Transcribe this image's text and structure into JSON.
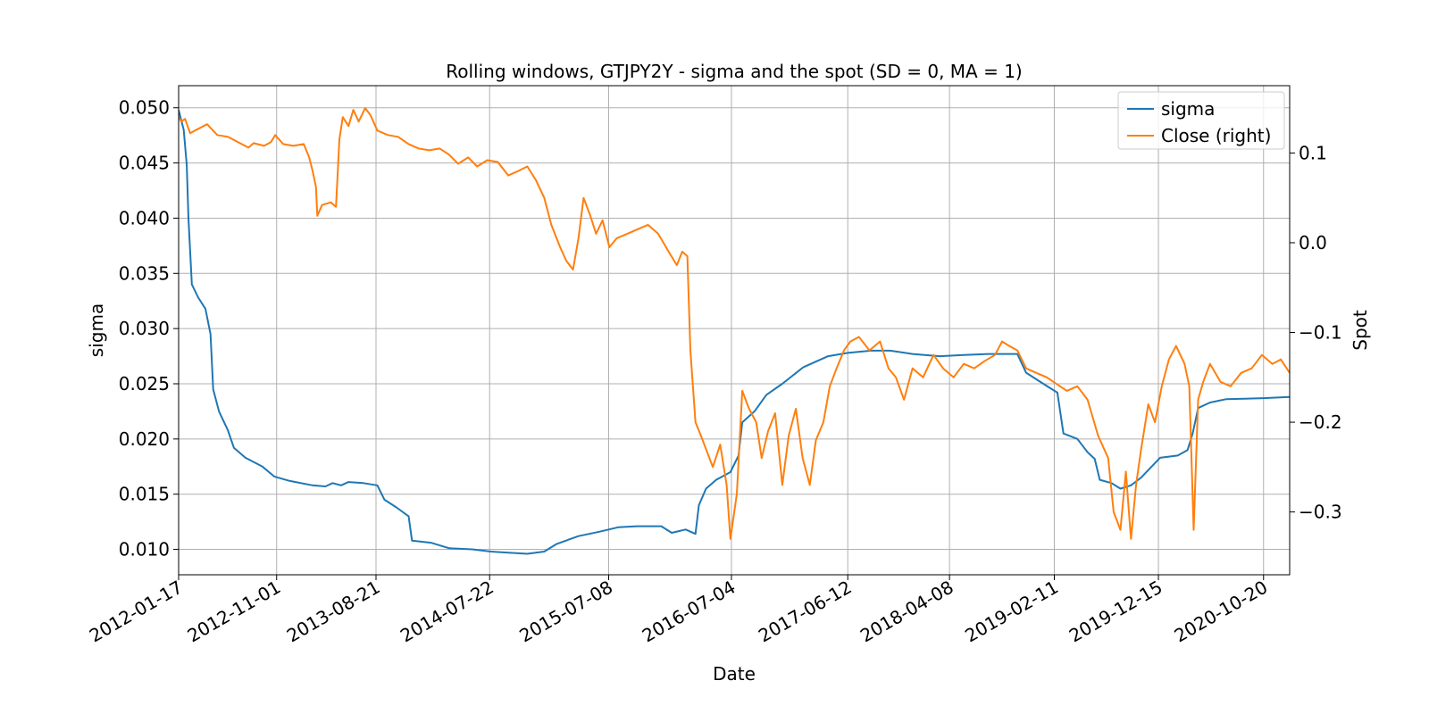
{
  "chart_data": {
    "type": "line",
    "title": "Rolling windows, GTJPY2Y - sigma and the spot (SD = 0, MA = 1)",
    "xlabel": "Date",
    "ylabel_left": "sigma",
    "ylabel_right": "Spot",
    "x_ticks": [
      "2012-01-17",
      "2012-11-01",
      "2013-08-21",
      "2014-07-22",
      "2015-07-08",
      "2016-07-04",
      "2017-06-12",
      "2018-04-08",
      "2019-02-11",
      "2019-12-15",
      "2020-10-20"
    ],
    "xlim": [
      "2012-01-17",
      "2021-01-05"
    ],
    "y_left_ticks": [
      "0.010",
      "0.015",
      "0.020",
      "0.025",
      "0.030",
      "0.035",
      "0.040",
      "0.045",
      "0.050"
    ],
    "y_left_lim": [
      0.0077,
      0.052
    ],
    "y_right_ticks": [
      "−0.3",
      "−0.2",
      "−0.1",
      "0.0",
      "0.1"
    ],
    "y_right_lim": [
      -0.37,
      0.175
    ],
    "grid": true,
    "legend_position": "top-right",
    "legend": [
      "sigma",
      "Close (right)"
    ],
    "series": [
      {
        "name": "sigma",
        "axis": "left",
        "color": "#1f77b4",
        "points": [
          [
            "2012-01-17",
            0.0498
          ],
          [
            "2012-02-01",
            0.048
          ],
          [
            "2012-02-10",
            0.0448
          ],
          [
            "2012-02-15",
            0.04
          ],
          [
            "2012-02-25",
            0.034
          ],
          [
            "2012-03-15",
            0.0328
          ],
          [
            "2012-04-05",
            0.0318
          ],
          [
            "2012-04-20",
            0.0295
          ],
          [
            "2012-04-28",
            0.0245
          ],
          [
            "2012-05-15",
            0.0225
          ],
          [
            "2012-06-10",
            0.0208
          ],
          [
            "2012-06-28",
            0.0192
          ],
          [
            "2012-08-01",
            0.0183
          ],
          [
            "2012-09-20",
            0.0175
          ],
          [
            "2012-10-25",
            0.0166
          ],
          [
            "2012-12-10",
            0.0162
          ],
          [
            "2013-02-15",
            0.0158
          ],
          [
            "2013-03-25",
            0.0157
          ],
          [
            "2013-04-15",
            0.016
          ],
          [
            "2013-05-10",
            0.0158
          ],
          [
            "2013-06-01",
            0.0161
          ],
          [
            "2013-07-15",
            0.016
          ],
          [
            "2013-08-25",
            0.0158
          ],
          [
            "2013-09-15",
            0.0145
          ],
          [
            "2013-10-20",
            0.0138
          ],
          [
            "2013-11-25",
            0.013
          ],
          [
            "2013-12-05",
            0.0108
          ],
          [
            "2014-01-30",
            0.0106
          ],
          [
            "2014-03-25",
            0.0101
          ],
          [
            "2014-06-01",
            0.01
          ],
          [
            "2014-07-25",
            0.0098
          ],
          [
            "2014-09-15",
            0.0097
          ],
          [
            "2014-11-10",
            0.0096
          ],
          [
            "2014-12-30",
            0.0098
          ],
          [
            "2015-02-05",
            0.0105
          ],
          [
            "2015-04-10",
            0.0112
          ],
          [
            "2015-06-10",
            0.0116
          ],
          [
            "2015-08-05",
            0.012
          ],
          [
            "2015-09-30",
            0.0121
          ],
          [
            "2015-12-10",
            0.0121
          ],
          [
            "2016-01-10",
            0.0115
          ],
          [
            "2016-02-20",
            0.0118
          ],
          [
            "2016-03-20",
            0.0114
          ],
          [
            "2016-03-30",
            0.014
          ],
          [
            "2016-04-20",
            0.0155
          ],
          [
            "2016-05-20",
            0.0163
          ],
          [
            "2016-07-01",
            0.017
          ],
          [
            "2016-07-25",
            0.0185
          ],
          [
            "2016-08-05",
            0.0215
          ],
          [
            "2016-09-10",
            0.0225
          ],
          [
            "2016-10-15",
            0.024
          ],
          [
            "2016-12-01",
            0.025
          ],
          [
            "2017-02-01",
            0.0265
          ],
          [
            "2017-04-15",
            0.0275
          ],
          [
            "2017-06-12",
            0.0278
          ],
          [
            "2017-08-20",
            0.028
          ],
          [
            "2017-10-15",
            0.028
          ],
          [
            "2017-12-20",
            0.0277
          ],
          [
            "2018-03-10",
            0.0275
          ],
          [
            "2018-05-20",
            0.0276
          ],
          [
            "2018-08-01",
            0.0277
          ],
          [
            "2018-10-25",
            0.0277
          ],
          [
            "2018-11-20",
            0.026
          ],
          [
            "2019-01-20",
            0.0248
          ],
          [
            "2019-02-20",
            0.0242
          ],
          [
            "2019-03-10",
            0.0205
          ],
          [
            "2019-04-20",
            0.02
          ],
          [
            "2019-05-20",
            0.0188
          ],
          [
            "2019-06-10",
            0.0182
          ],
          [
            "2019-06-25",
            0.0163
          ],
          [
            "2019-07-30",
            0.016
          ],
          [
            "2019-08-25",
            0.0155
          ],
          [
            "2019-09-25",
            0.0158
          ],
          [
            "2019-10-25",
            0.0165
          ],
          [
            "2019-11-25",
            0.0175
          ],
          [
            "2019-12-20",
            0.0183
          ],
          [
            "2020-02-10",
            0.0185
          ],
          [
            "2020-03-10",
            0.019
          ],
          [
            "2020-03-25",
            0.0205
          ],
          [
            "2020-04-10",
            0.0228
          ],
          [
            "2020-05-15",
            0.0233
          ],
          [
            "2020-07-01",
            0.0236
          ],
          [
            "2020-10-20",
            0.0237
          ],
          [
            "2021-01-05",
            0.0238
          ]
        ]
      },
      {
        "name": "Close (right)",
        "axis": "right",
        "color": "#ff7f0e",
        "points": [
          [
            "2012-01-17",
            0.14
          ],
          [
            "2012-01-25",
            0.135
          ],
          [
            "2012-02-05",
            0.138
          ],
          [
            "2012-02-20",
            0.122
          ],
          [
            "2012-03-10",
            0.126
          ],
          [
            "2012-04-10",
            0.132
          ],
          [
            "2012-05-10",
            0.12
          ],
          [
            "2012-06-10",
            0.118
          ],
          [
            "2012-07-10",
            0.112
          ],
          [
            "2012-08-10",
            0.106
          ],
          [
            "2012-08-25",
            0.111
          ],
          [
            "2012-09-25",
            0.108
          ],
          [
            "2012-10-15",
            0.112
          ],
          [
            "2012-10-28",
            0.12
          ],
          [
            "2012-11-20",
            0.11
          ],
          [
            "2012-12-20",
            0.108
          ],
          [
            "2013-01-20",
            0.11
          ],
          [
            "2013-02-05",
            0.095
          ],
          [
            "2013-02-15",
            0.08
          ],
          [
            "2013-02-25",
            0.062
          ],
          [
            "2013-03-01",
            0.03
          ],
          [
            "2013-03-15",
            0.042
          ],
          [
            "2013-04-10",
            0.045
          ],
          [
            "2013-04-25",
            0.04
          ],
          [
            "2013-05-05",
            0.115
          ],
          [
            "2013-05-15",
            0.14
          ],
          [
            "2013-06-01",
            0.13
          ],
          [
            "2013-06-15",
            0.148
          ],
          [
            "2013-07-01",
            0.135
          ],
          [
            "2013-07-20",
            0.15
          ],
          [
            "2013-08-05",
            0.142
          ],
          [
            "2013-08-25",
            0.125
          ],
          [
            "2013-09-25",
            0.12
          ],
          [
            "2013-10-25",
            0.118
          ],
          [
            "2013-11-25",
            0.11
          ],
          [
            "2013-12-25",
            0.105
          ],
          [
            "2014-01-25",
            0.103
          ],
          [
            "2014-02-25",
            0.105
          ],
          [
            "2014-03-25",
            0.098
          ],
          [
            "2014-04-20",
            0.088
          ],
          [
            "2014-05-20",
            0.095
          ],
          [
            "2014-06-15",
            0.085
          ],
          [
            "2014-07-15",
            0.092
          ],
          [
            "2014-08-15",
            0.09
          ],
          [
            "2014-09-15",
            0.075
          ],
          [
            "2014-10-15",
            0.08
          ],
          [
            "2014-11-10",
            0.085
          ],
          [
            "2014-12-05",
            0.07
          ],
          [
            "2014-12-30",
            0.05
          ],
          [
            "2015-01-20",
            0.02
          ],
          [
            "2015-02-15",
            -0.005
          ],
          [
            "2015-03-05",
            -0.02
          ],
          [
            "2015-03-25",
            -0.03
          ],
          [
            "2015-04-10",
            0.005
          ],
          [
            "2015-04-25",
            0.05
          ],
          [
            "2015-05-15",
            0.03
          ],
          [
            "2015-06-01",
            0.01
          ],
          [
            "2015-06-20",
            0.025
          ],
          [
            "2015-07-10",
            -0.005
          ],
          [
            "2015-08-01",
            0.005
          ],
          [
            "2015-09-01",
            0.01
          ],
          [
            "2015-10-01",
            0.015
          ],
          [
            "2015-11-01",
            0.02
          ],
          [
            "2015-12-01",
            0.01
          ],
          [
            "2016-01-01",
            -0.01
          ],
          [
            "2016-01-25",
            -0.025
          ],
          [
            "2016-02-10",
            -0.01
          ],
          [
            "2016-02-25",
            -0.015
          ],
          [
            "2016-03-05",
            -0.12
          ],
          [
            "2016-03-20",
            -0.2
          ],
          [
            "2016-04-05",
            -0.215
          ],
          [
            "2016-04-20",
            -0.23
          ],
          [
            "2016-05-10",
            -0.25
          ],
          [
            "2016-06-01",
            -0.225
          ],
          [
            "2016-06-20",
            -0.27
          ],
          [
            "2016-07-01",
            -0.33
          ],
          [
            "2016-07-20",
            -0.28
          ],
          [
            "2016-08-05",
            -0.165
          ],
          [
            "2016-08-25",
            -0.185
          ],
          [
            "2016-09-15",
            -0.2
          ],
          [
            "2016-10-01",
            -0.24
          ],
          [
            "2016-10-20",
            -0.21
          ],
          [
            "2016-11-10",
            -0.19
          ],
          [
            "2016-12-01",
            -0.27
          ],
          [
            "2016-12-20",
            -0.215
          ],
          [
            "2017-01-10",
            -0.185
          ],
          [
            "2017-01-30",
            -0.24
          ],
          [
            "2017-02-20",
            -0.27
          ],
          [
            "2017-03-10",
            -0.22
          ],
          [
            "2017-04-01",
            -0.2
          ],
          [
            "2017-04-20",
            -0.16
          ],
          [
            "2017-05-10",
            -0.14
          ],
          [
            "2017-06-01",
            -0.12
          ],
          [
            "2017-06-20",
            -0.11
          ],
          [
            "2017-07-15",
            -0.105
          ],
          [
            "2017-08-15",
            -0.12
          ],
          [
            "2017-09-15",
            -0.11
          ],
          [
            "2017-10-10",
            -0.14
          ],
          [
            "2017-11-01",
            -0.15
          ],
          [
            "2017-11-25",
            -0.175
          ],
          [
            "2017-12-20",
            -0.14
          ],
          [
            "2018-01-20",
            -0.15
          ],
          [
            "2018-02-20",
            -0.125
          ],
          [
            "2018-03-20",
            -0.14
          ],
          [
            "2018-04-20",
            -0.15
          ],
          [
            "2018-05-20",
            -0.135
          ],
          [
            "2018-06-20",
            -0.14
          ],
          [
            "2018-07-20",
            -0.132
          ],
          [
            "2018-08-20",
            -0.125
          ],
          [
            "2018-09-10",
            -0.11
          ],
          [
            "2018-10-01",
            -0.115
          ],
          [
            "2018-10-25",
            -0.12
          ],
          [
            "2018-11-20",
            -0.14
          ],
          [
            "2018-12-20",
            -0.145
          ],
          [
            "2019-01-20",
            -0.15
          ],
          [
            "2019-02-20",
            -0.158
          ],
          [
            "2019-03-20",
            -0.165
          ],
          [
            "2019-04-20",
            -0.16
          ],
          [
            "2019-05-20",
            -0.175
          ],
          [
            "2019-06-20",
            -0.215
          ],
          [
            "2019-07-20",
            -0.24
          ],
          [
            "2019-08-05",
            -0.3
          ],
          [
            "2019-08-25",
            -0.32
          ],
          [
            "2019-09-10",
            -0.255
          ],
          [
            "2019-09-25",
            -0.33
          ],
          [
            "2019-10-10",
            -0.27
          ],
          [
            "2019-10-25",
            -0.23
          ],
          [
            "2019-11-15",
            -0.18
          ],
          [
            "2019-12-05",
            -0.2
          ],
          [
            "2019-12-25",
            -0.16
          ],
          [
            "2020-01-15",
            -0.13
          ],
          [
            "2020-02-05",
            -0.115
          ],
          [
            "2020-03-01",
            -0.135
          ],
          [
            "2020-03-15",
            -0.16
          ],
          [
            "2020-03-28",
            -0.32
          ],
          [
            "2020-04-10",
            -0.175
          ],
          [
            "2020-04-25",
            -0.155
          ],
          [
            "2020-05-15",
            -0.135
          ],
          [
            "2020-06-15",
            -0.155
          ],
          [
            "2020-07-15",
            -0.16
          ],
          [
            "2020-08-15",
            -0.145
          ],
          [
            "2020-09-15",
            -0.14
          ],
          [
            "2020-10-15",
            -0.125
          ],
          [
            "2020-11-15",
            -0.135
          ],
          [
            "2020-12-10",
            -0.13
          ],
          [
            "2021-01-05",
            -0.145
          ]
        ]
      }
    ]
  }
}
